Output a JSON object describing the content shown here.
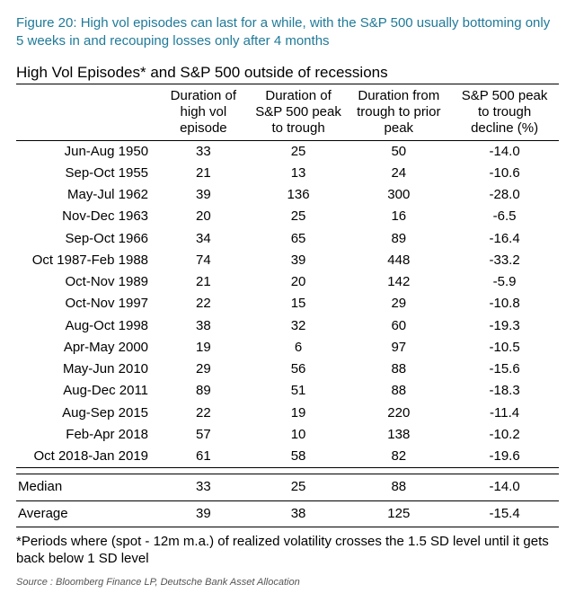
{
  "figure": {
    "title": "Figure 20: High vol episodes can last for a while, with the S&P 500 usually bottoming only 5 weeks in and recouping losses only after 4 months",
    "title_color": "#1f7a99",
    "subtitle": "High Vol Episodes* and S&P 500 outside of recessions"
  },
  "table": {
    "columns": [
      "",
      "Duration of high vol episode",
      "Duration of S&P 500 peak to trough",
      "Duration from trough to prior peak",
      "S&P 500 peak to trough decline (%)"
    ],
    "rows": [
      [
        "Jun-Aug 1950",
        "33",
        "25",
        "50",
        "-14.0"
      ],
      [
        "Sep-Oct 1955",
        "21",
        "13",
        "24",
        "-10.6"
      ],
      [
        "May-Jul 1962",
        "39",
        "136",
        "300",
        "-28.0"
      ],
      [
        "Nov-Dec 1963",
        "20",
        "25",
        "16",
        "-6.5"
      ],
      [
        "Sep-Oct 1966",
        "34",
        "65",
        "89",
        "-16.4"
      ],
      [
        "Oct 1987-Feb 1988",
        "74",
        "39",
        "448",
        "-33.2"
      ],
      [
        "Oct-Nov 1989",
        "21",
        "20",
        "142",
        "-5.9"
      ],
      [
        "Oct-Nov 1997",
        "22",
        "15",
        "29",
        "-10.8"
      ],
      [
        "Aug-Oct 1998",
        "38",
        "32",
        "60",
        "-19.3"
      ],
      [
        "Apr-May 2000",
        "19",
        "6",
        "97",
        "-10.5"
      ],
      [
        "May-Jun 2010",
        "29",
        "56",
        "88",
        "-15.6"
      ],
      [
        "Aug-Dec 2011",
        "89",
        "51",
        "88",
        "-18.3"
      ],
      [
        "Aug-Sep 2015",
        "22",
        "19",
        "220",
        "-11.4"
      ],
      [
        "Feb-Apr 2018",
        "57",
        "10",
        "138",
        "-10.2"
      ],
      [
        "Oct 2018-Jan 2019",
        "61",
        "58",
        "82",
        "-19.6"
      ]
    ],
    "median": [
      "Median",
      "33",
      "25",
      "88",
      "-14.0"
    ],
    "average": [
      "Average",
      "39",
      "38",
      "125",
      "-15.4"
    ],
    "col_align": [
      "right",
      "center",
      "center",
      "center",
      "center"
    ],
    "border_color": "#000000"
  },
  "footnote": "*Periods where (spot - 12m m.a.) of realized volatility crosses the 1.5 SD level until it gets back below 1 SD level",
  "source": "Source : Bloomberg Finance LP, Deutsche Bank Asset Allocation"
}
